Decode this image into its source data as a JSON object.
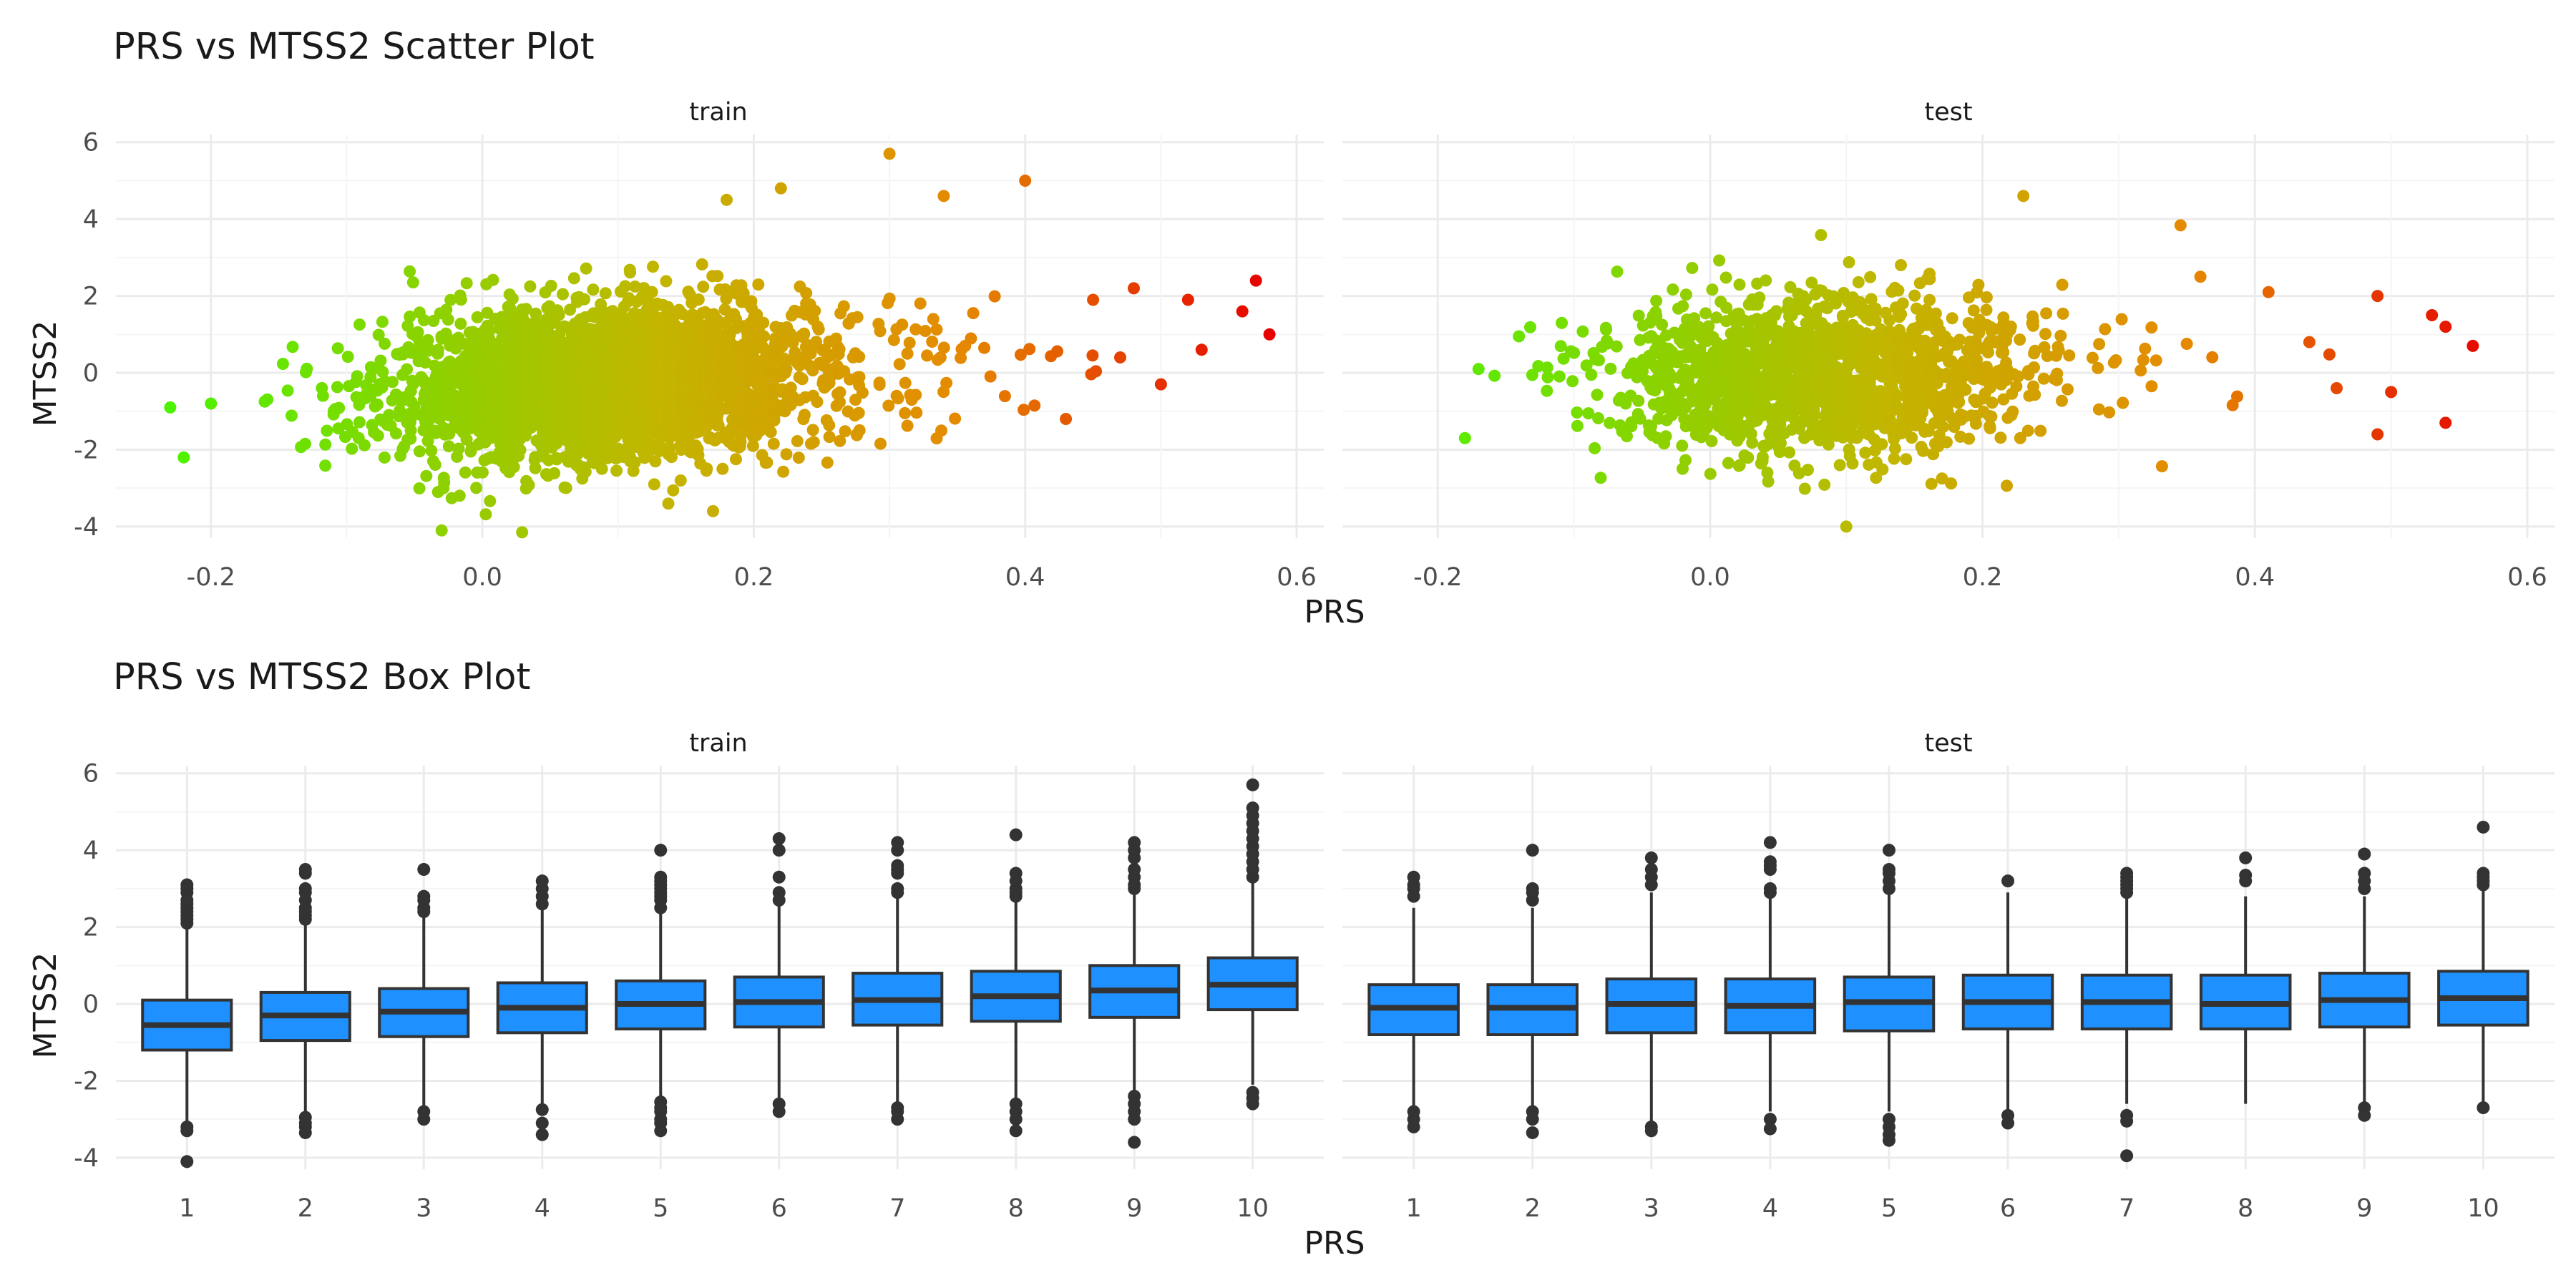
{
  "colors": {
    "background": "#ffffff",
    "grid_major": "#ebebeb",
    "grid_minor": "#f5f5f5",
    "point_low": "#49f500",
    "point_mid": "#c2b600",
    "point_high2": "#e58a00",
    "point_high": "#e60000",
    "box_fill": "#1e90ff",
    "box_line": "#333333"
  },
  "chart_data": [
    {
      "type": "scatter",
      "title": "PRS vs MTSS2 Scatter Plot",
      "xlabel": "PRS",
      "ylabel": "MTSS2",
      "facets": [
        "train",
        "test"
      ],
      "xlim": [
        -0.27,
        0.62
      ],
      "ylim": [
        -4.3,
        6.2
      ],
      "xticks": [
        "-0.2",
        "0.0",
        "0.2",
        "0.4",
        "0.6"
      ],
      "xtick_values": [
        -0.2,
        0.0,
        0.2,
        0.4,
        0.6
      ],
      "yticks": [
        "-4",
        "-2",
        "0",
        "2",
        "4",
        "6"
      ],
      "ytick_values": [
        -4,
        -2,
        0,
        2,
        4,
        6
      ],
      "color_encoding": "PRS (green low → red high)",
      "grid": true,
      "legend": "none",
      "series": [
        {
          "facet": "train",
          "approx_points": 3000,
          "trend": {
            "slope": 5.0,
            "intercept": -0.4,
            "residual_sd": 1.0
          },
          "prs_center": 0.08,
          "outliers": [
            {
              "x": -0.23,
              "y": -0.9
            },
            {
              "x": -0.22,
              "y": -2.2
            },
            {
              "x": -0.2,
              "y": -0.8
            },
            {
              "x": -0.03,
              "y": -4.1
            },
            {
              "x": 0.17,
              "y": -3.6
            },
            {
              "x": 0.18,
              "y": 4.5
            },
            {
              "x": 0.22,
              "y": 4.8
            },
            {
              "x": 0.3,
              "y": 5.7
            },
            {
              "x": 0.34,
              "y": 4.6
            },
            {
              "x": 0.4,
              "y": 5.0
            },
            {
              "x": 0.45,
              "y": 1.9
            },
            {
              "x": 0.48,
              "y": 2.2
            },
            {
              "x": 0.52,
              "y": 1.9
            },
            {
              "x": 0.53,
              "y": 0.6
            },
            {
              "x": 0.56,
              "y": 1.6
            },
            {
              "x": 0.57,
              "y": 2.4
            },
            {
              "x": 0.58,
              "y": 1.0
            },
            {
              "x": 0.5,
              "y": -0.3
            },
            {
              "x": 0.43,
              "y": -1.2
            },
            {
              "x": 0.47,
              "y": 0.4
            }
          ]
        },
        {
          "facet": "test",
          "approx_points": 1600,
          "trend": {
            "slope": 1.5,
            "intercept": -0.1,
            "residual_sd": 1.0
          },
          "prs_center": 0.07,
          "outliers": [
            {
              "x": -0.18,
              "y": -1.7
            },
            {
              "x": -0.17,
              "y": 0.1
            },
            {
              "x": 0.1,
              "y": -4.0
            },
            {
              "x": 0.23,
              "y": 4.6
            },
            {
              "x": 0.41,
              "y": 2.1
            },
            {
              "x": 0.36,
              "y": 2.5
            },
            {
              "x": 0.49,
              "y": 2.0
            },
            {
              "x": 0.49,
              "y": -1.6
            },
            {
              "x": 0.5,
              "y": -0.5
            },
            {
              "x": 0.53,
              "y": 1.5
            },
            {
              "x": 0.54,
              "y": 1.2
            },
            {
              "x": 0.54,
              "y": -1.3
            },
            {
              "x": 0.56,
              "y": 0.7
            },
            {
              "x": 0.46,
              "y": -0.4
            },
            {
              "x": 0.44,
              "y": 0.8
            }
          ]
        }
      ]
    },
    {
      "type": "box",
      "title": "PRS vs MTSS2 Box Plot",
      "xlabel": "PRS",
      "ylabel": "MTSS2",
      "facets": [
        "train",
        "test"
      ],
      "categories": [
        "1",
        "2",
        "3",
        "4",
        "5",
        "6",
        "7",
        "8",
        "9",
        "10"
      ],
      "ylim": [
        -4.3,
        6.2
      ],
      "yticks": [
        "-4",
        "-2",
        "0",
        "2",
        "4",
        "6"
      ],
      "ytick_values": [
        -4,
        -2,
        0,
        2,
        4,
        6
      ],
      "grid": true,
      "legend": "none",
      "series": [
        {
          "facet": "train",
          "boxes": [
            {
              "q1": -1.2,
              "median": -0.55,
              "q3": 0.1,
              "lo": -3.1,
              "hi": 2.0,
              "outliers": [
                2.1,
                2.2,
                2.3,
                2.4,
                2.5,
                2.6,
                2.7,
                2.9,
                3.0,
                3.1,
                -3.2,
                -3.3,
                -4.1
              ]
            },
            {
              "q1": -0.95,
              "median": -0.3,
              "q3": 0.3,
              "lo": -2.8,
              "hi": 2.1,
              "outliers": [
                2.2,
                2.3,
                2.4,
                2.5,
                2.7,
                2.9,
                3.0,
                3.4,
                3.5,
                -2.95,
                -3.1,
                -3.2,
                -3.35
              ]
            },
            {
              "q1": -0.85,
              "median": -0.2,
              "q3": 0.4,
              "lo": -2.7,
              "hi": 2.3,
              "outliers": [
                2.4,
                2.5,
                2.7,
                2.8,
                3.5,
                -2.8,
                -3.0
              ]
            },
            {
              "q1": -0.75,
              "median": -0.1,
              "q3": 0.55,
              "lo": -2.6,
              "hi": 2.5,
              "outliers": [
                2.6,
                2.8,
                3.0,
                3.2,
                -2.75,
                -3.1,
                -3.4
              ]
            },
            {
              "q1": -0.65,
              "median": 0.0,
              "q3": 0.6,
              "lo": -2.5,
              "hi": 2.4,
              "outliers": [
                2.5,
                2.7,
                2.8,
                2.9,
                3.0,
                3.1,
                3.2,
                3.3,
                4.0,
                -2.55,
                -2.7,
                -2.8,
                -3.0,
                -3.1,
                -3.3
              ]
            },
            {
              "q1": -0.6,
              "median": 0.05,
              "q3": 0.7,
              "lo": -2.5,
              "hi": 2.6,
              "outliers": [
                2.7,
                2.9,
                3.3,
                4.0,
                4.3,
                -2.6,
                -2.8
              ]
            },
            {
              "q1": -0.55,
              "median": 0.1,
              "q3": 0.8,
              "lo": -2.6,
              "hi": 2.8,
              "outliers": [
                2.9,
                3.0,
                3.4,
                3.5,
                3.6,
                4.0,
                4.2,
                -2.7,
                -2.8,
                -3.0
              ]
            },
            {
              "q1": -0.45,
              "median": 0.2,
              "q3": 0.85,
              "lo": -2.5,
              "hi": 2.7,
              "outliers": [
                2.8,
                2.9,
                3.0,
                3.2,
                3.4,
                4.4,
                -2.6,
                -2.8,
                -3.0,
                -3.3
              ]
            },
            {
              "q1": -0.35,
              "median": 0.35,
              "q3": 1.0,
              "lo": -2.3,
              "hi": 2.9,
              "outliers": [
                3.0,
                3.1,
                3.3,
                3.5,
                3.8,
                4.0,
                4.2,
                -2.4,
                -2.6,
                -2.8,
                -3.0,
                -3.6
              ]
            },
            {
              "q1": -0.15,
              "median": 0.5,
              "q3": 1.2,
              "lo": -2.1,
              "hi": 3.2,
              "outliers": [
                3.3,
                3.5,
                3.7,
                3.9,
                4.1,
                4.3,
                4.5,
                4.7,
                4.9,
                5.1,
                5.7,
                -2.3,
                -2.45,
                -2.6
              ]
            }
          ]
        },
        {
          "facet": "test",
          "boxes": [
            {
              "q1": -0.8,
              "median": -0.1,
              "q3": 0.5,
              "lo": -2.7,
              "hi": 2.5,
              "outliers": [
                2.8,
                3.0,
                3.1,
                3.3,
                -2.8,
                -3.0,
                -3.2
              ]
            },
            {
              "q1": -0.8,
              "median": -0.1,
              "q3": 0.5,
              "lo": -2.7,
              "hi": 2.5,
              "outliers": [
                2.7,
                2.9,
                3.0,
                4.0,
                -2.8,
                -3.0,
                -3.35
              ]
            },
            {
              "q1": -0.75,
              "median": 0.0,
              "q3": 0.65,
              "lo": -3.1,
              "hi": 2.9,
              "outliers": [
                3.1,
                3.3,
                3.5,
                3.8,
                -3.2,
                -3.3
              ]
            },
            {
              "q1": -0.75,
              "median": -0.05,
              "q3": 0.65,
              "lo": -2.8,
              "hi": 2.8,
              "outliers": [
                2.9,
                3.0,
                3.5,
                3.6,
                3.7,
                4.2,
                -3.0,
                -3.25
              ]
            },
            {
              "q1": -0.7,
              "median": 0.05,
              "q3": 0.7,
              "lo": -2.8,
              "hi": 2.9,
              "outliers": [
                3.0,
                3.2,
                3.4,
                3.5,
                4.0,
                -3.0,
                -3.2,
                -3.4,
                -3.55
              ]
            },
            {
              "q1": -0.65,
              "median": 0.05,
              "q3": 0.75,
              "lo": -2.8,
              "hi": 2.9,
              "outliers": [
                3.2,
                -2.9,
                -3.1
              ]
            },
            {
              "q1": -0.65,
              "median": 0.05,
              "q3": 0.75,
              "lo": -2.6,
              "hi": 2.8,
              "outliers": [
                2.9,
                3.0,
                3.1,
                3.2,
                3.3,
                3.4,
                -2.9,
                -3.05,
                -3.95
              ]
            },
            {
              "q1": -0.65,
              "median": 0.0,
              "q3": 0.75,
              "lo": -2.6,
              "hi": 2.8,
              "outliers": [
                3.2,
                3.35,
                3.8
              ]
            },
            {
              "q1": -0.6,
              "median": 0.1,
              "q3": 0.8,
              "lo": -2.6,
              "hi": 2.8,
              "outliers": [
                3.0,
                3.2,
                3.4,
                3.9,
                -2.7,
                -2.9
              ]
            },
            {
              "q1": -0.55,
              "median": 0.15,
              "q3": 0.85,
              "lo": -2.6,
              "hi": 3.0,
              "outliers": [
                3.1,
                3.2,
                3.3,
                3.4,
                4.6,
                -2.7
              ]
            }
          ]
        }
      ]
    }
  ]
}
